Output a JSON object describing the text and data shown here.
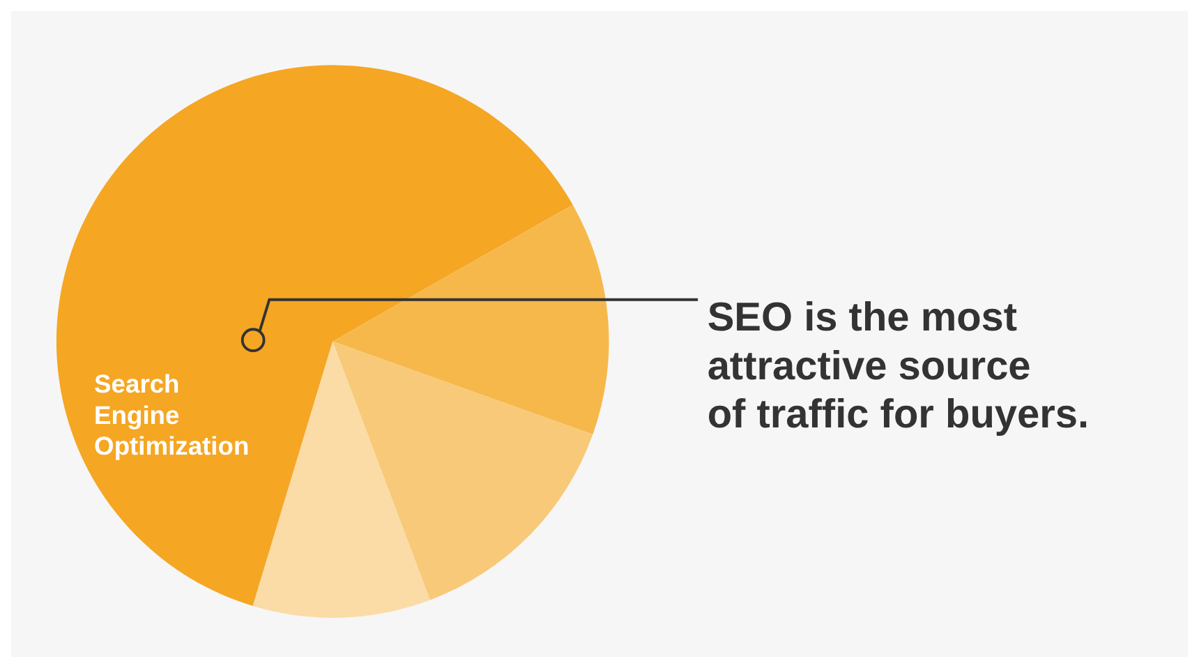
{
  "chart_data": {
    "type": "pie",
    "categories": [
      "Search Engine Optimization",
      null,
      null,
      null
    ],
    "values": [
      62.1,
      13.7,
      13.8,
      10.4
    ],
    "colors": [
      "#f5a623",
      "#f7b84b",
      "#f8c978",
      "#fbdba6"
    ],
    "annotations": [
      "SEO is the most attractive source of traffic for buyers."
    ]
  }
}
